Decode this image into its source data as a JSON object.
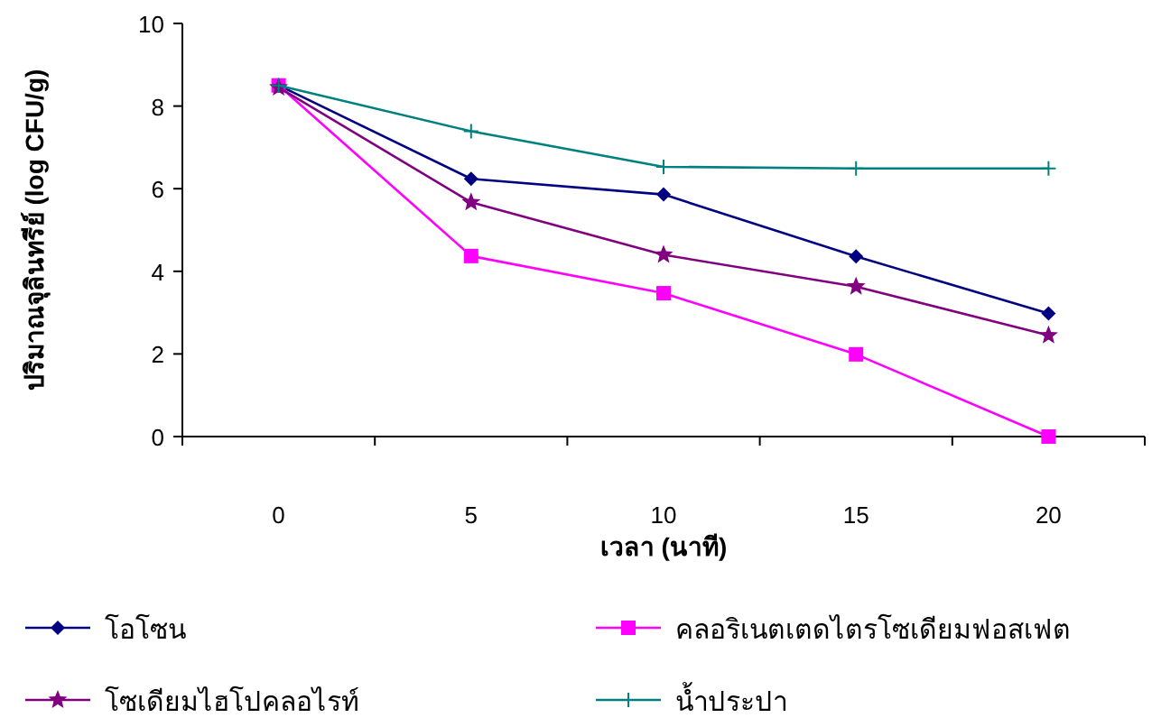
{
  "chart_data": {
    "type": "line",
    "xlabel": "เวลา (นาที)",
    "ylabel": "ปริมาณจุลินทรีย์ (log CFU/g)",
    "categories": [
      "0",
      "5",
      "10",
      "15",
      "20"
    ],
    "ylim": [
      0,
      10
    ],
    "yticks": [
      0,
      2,
      4,
      6,
      8,
      10
    ],
    "legend": "bottom",
    "series": [
      {
        "name": "โอโซน",
        "color": "#000080",
        "marker": "diamond",
        "values": [
          8.5,
          6.24,
          5.86,
          4.36,
          2.98
        ]
      },
      {
        "name": "คลอริเนตเตดไตรโซเดียมฟอสเฟต",
        "color": "#ff00ff",
        "marker": "square",
        "values": [
          8.5,
          4.37,
          3.47,
          1.99,
          0
        ]
      },
      {
        "name": "โซเดียมไฮโปคลอไรท์",
        "color": "#800080",
        "marker": "star",
        "values": [
          8.45,
          5.67,
          4.4,
          3.63,
          2.45
        ]
      },
      {
        "name": "น้ำประปา",
        "color": "#008080",
        "marker": "cross",
        "values": [
          8.5,
          7.39,
          6.53,
          6.49,
          6.49
        ]
      }
    ]
  }
}
